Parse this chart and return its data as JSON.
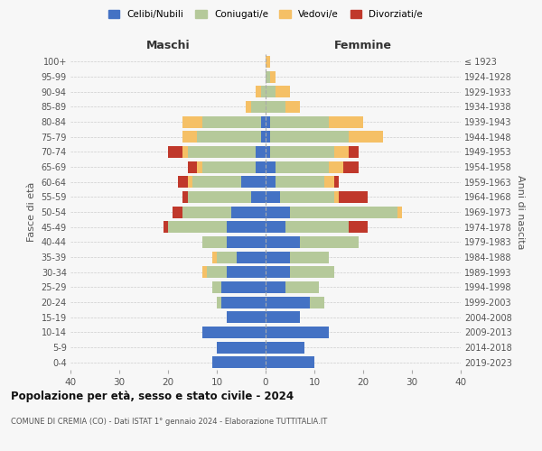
{
  "age_groups": [
    "0-4",
    "5-9",
    "10-14",
    "15-19",
    "20-24",
    "25-29",
    "30-34",
    "35-39",
    "40-44",
    "45-49",
    "50-54",
    "55-59",
    "60-64",
    "65-69",
    "70-74",
    "75-79",
    "80-84",
    "85-89",
    "90-94",
    "95-99",
    "100+"
  ],
  "birth_years": [
    "2019-2023",
    "2014-2018",
    "2009-2013",
    "2004-2008",
    "1999-2003",
    "1994-1998",
    "1989-1993",
    "1984-1988",
    "1979-1983",
    "1974-1978",
    "1969-1973",
    "1964-1968",
    "1959-1963",
    "1954-1958",
    "1949-1953",
    "1944-1948",
    "1939-1943",
    "1934-1938",
    "1929-1933",
    "1924-1928",
    "≤ 1923"
  ],
  "colors": {
    "celibi": "#4472c4",
    "coniugati": "#b5c99a",
    "vedovi": "#f5c066",
    "divorziati": "#c0382b"
  },
  "males": {
    "celibi": [
      11,
      10,
      13,
      8,
      9,
      9,
      8,
      6,
      8,
      8,
      7,
      3,
      5,
      2,
      2,
      1,
      1,
      0,
      0,
      0,
      0
    ],
    "coniugati": [
      0,
      0,
      0,
      0,
      1,
      2,
      4,
      4,
      5,
      12,
      10,
      13,
      10,
      11,
      14,
      13,
      12,
      3,
      1,
      0,
      0
    ],
    "vedovi": [
      0,
      0,
      0,
      0,
      0,
      0,
      1,
      1,
      0,
      0,
      0,
      0,
      1,
      1,
      1,
      3,
      4,
      1,
      1,
      0,
      0
    ],
    "divorziati": [
      0,
      0,
      0,
      0,
      0,
      0,
      0,
      0,
      0,
      1,
      2,
      1,
      2,
      2,
      3,
      0,
      0,
      0,
      0,
      0,
      0
    ]
  },
  "females": {
    "celibi": [
      10,
      8,
      13,
      7,
      9,
      4,
      5,
      5,
      7,
      4,
      5,
      3,
      2,
      2,
      1,
      1,
      1,
      0,
      0,
      0,
      0
    ],
    "coniugati": [
      0,
      0,
      0,
      0,
      3,
      7,
      9,
      8,
      12,
      13,
      22,
      11,
      10,
      11,
      13,
      16,
      12,
      4,
      2,
      1,
      0
    ],
    "vedovi": [
      0,
      0,
      0,
      0,
      0,
      0,
      0,
      0,
      0,
      0,
      1,
      1,
      2,
      3,
      3,
      7,
      7,
      3,
      3,
      1,
      1
    ],
    "divorziati": [
      0,
      0,
      0,
      0,
      0,
      0,
      0,
      0,
      0,
      4,
      0,
      6,
      1,
      3,
      2,
      0,
      0,
      0,
      0,
      0,
      0
    ]
  },
  "title": "Popolazione per età, sesso e stato civile - 2024",
  "subtitle": "COMUNE DI CREMIA (CO) - Dati ISTAT 1° gennaio 2024 - Elaborazione TUTTITALIA.IT",
  "xlabel_left": "Maschi",
  "xlabel_right": "Femmine",
  "ylabel_left": "Fasce di età",
  "ylabel_right": "Anni di nascita",
  "xlim": 40,
  "legend_labels": [
    "Celibi/Nubili",
    "Coniugati/e",
    "Vedovi/e",
    "Divorziati/e"
  ],
  "background_color": "#f7f7f7",
  "grid_color": "#cccccc"
}
